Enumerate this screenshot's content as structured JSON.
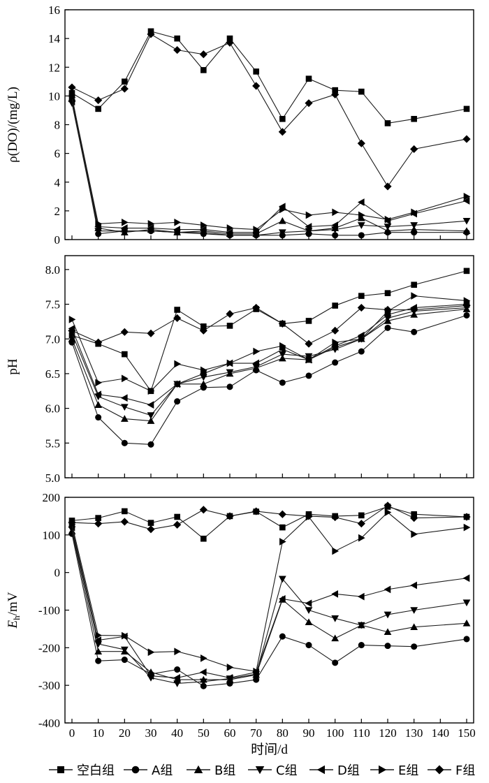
{
  "chart_data": [
    {
      "type": "line",
      "ylabel": "ρ(DO)/(mg/L)",
      "xlabel": "",
      "x": [
        0,
        10,
        20,
        30,
        40,
        50,
        60,
        70,
        80,
        90,
        100,
        110,
        120,
        130,
        150
      ],
      "xlim": [
        0,
        150
      ],
      "ylim": [
        0,
        16
      ],
      "yticks": [
        0,
        2,
        4,
        6,
        8,
        10,
        12,
        14,
        16
      ],
      "series": [
        {
          "name": "空白组",
          "marker": "square",
          "values": [
            10.2,
            9.1,
            11.0,
            14.5,
            14.0,
            11.8,
            14.0,
            11.7,
            8.4,
            11.2,
            10.4,
            10.3,
            8.1,
            8.4,
            9.1
          ]
        },
        {
          "name": "A组",
          "marker": "circle",
          "values": [
            10.0,
            0.4,
            0.6,
            0.6,
            0.5,
            0.4,
            0.3,
            0.3,
            0.3,
            0.4,
            0.3,
            0.3,
            0.5,
            0.5,
            0.5
          ]
        },
        {
          "name": "B组",
          "marker": "triangle-up",
          "values": [
            9.8,
            0.8,
            0.5,
            0.7,
            0.5,
            0.6,
            0.4,
            0.4,
            1.3,
            0.6,
            0.8,
            1.5,
            0.6,
            0.7,
            0.6
          ]
        },
        {
          "name": "C组",
          "marker": "triangle-down",
          "values": [
            9.5,
            0.6,
            0.6,
            0.6,
            0.5,
            0.5,
            0.3,
            0.3,
            0.5,
            0.6,
            0.7,
            1.0,
            0.9,
            1.0,
            1.3
          ]
        },
        {
          "name": "D组",
          "marker": "triangle-left",
          "values": [
            9.6,
            0.9,
            0.8,
            0.8,
            0.7,
            0.7,
            0.5,
            0.5,
            2.3,
            0.9,
            1.0,
            2.6,
            1.3,
            1.8,
            2.7
          ]
        },
        {
          "name": "E组",
          "marker": "triangle-right",
          "values": [
            9.9,
            1.1,
            1.2,
            1.1,
            1.2,
            1.0,
            0.8,
            0.7,
            2.1,
            1.7,
            1.9,
            1.7,
            1.4,
            1.9,
            3.0
          ]
        },
        {
          "name": "F组",
          "marker": "diamond",
          "values": [
            10.6,
            9.7,
            10.5,
            14.3,
            13.2,
            12.9,
            13.7,
            10.7,
            7.5,
            9.5,
            10.1,
            6.7,
            3.7,
            6.3,
            7.0
          ]
        }
      ]
    },
    {
      "type": "line",
      "ylabel": "pH",
      "xlabel": "",
      "x": [
        0,
        10,
        20,
        30,
        40,
        50,
        60,
        70,
        80,
        90,
        100,
        110,
        120,
        130,
        150
      ],
      "xlim": [
        0,
        150
      ],
      "ylim": [
        5.0,
        8.2
      ],
      "yticks": [
        5.0,
        5.5,
        6.0,
        6.5,
        7.0,
        7.5,
        8.0
      ],
      "series": [
        {
          "name": "空白组",
          "marker": "square",
          "values": [
            7.05,
            6.93,
            6.78,
            6.25,
            7.42,
            7.18,
            7.19,
            7.43,
            7.22,
            7.26,
            7.48,
            7.62,
            7.66,
            7.78,
            7.98
          ]
        },
        {
          "name": "A组",
          "marker": "circle",
          "values": [
            6.95,
            5.87,
            5.5,
            5.48,
            6.1,
            6.3,
            6.31,
            6.55,
            6.37,
            6.47,
            6.66,
            6.82,
            7.16,
            7.1,
            7.34
          ]
        },
        {
          "name": "B组",
          "marker": "triangle-up",
          "values": [
            7.0,
            6.05,
            5.85,
            5.82,
            6.35,
            6.35,
            6.5,
            6.58,
            6.72,
            6.7,
            6.88,
            7.0,
            7.26,
            7.35,
            7.43
          ]
        },
        {
          "name": "C组",
          "marker": "triangle-down",
          "values": [
            7.08,
            6.17,
            6.02,
            5.9,
            6.35,
            6.45,
            6.52,
            6.6,
            6.78,
            6.75,
            6.85,
            7.0,
            7.3,
            7.4,
            7.45
          ]
        },
        {
          "name": "D组",
          "marker": "triangle-left",
          "values": [
            7.15,
            6.2,
            6.15,
            6.05,
            6.35,
            6.5,
            6.65,
            6.65,
            6.85,
            6.7,
            6.9,
            7.05,
            7.35,
            7.45,
            7.5
          ]
        },
        {
          "name": "E组",
          "marker": "triangle-right",
          "values": [
            7.28,
            6.37,
            6.43,
            6.25,
            6.64,
            6.55,
            6.65,
            6.82,
            6.9,
            6.7,
            6.95,
            7.0,
            7.4,
            7.62,
            7.55
          ]
        },
        {
          "name": "F组",
          "marker": "diamond",
          "values": [
            7.12,
            6.95,
            7.1,
            7.08,
            7.3,
            7.12,
            7.36,
            7.45,
            7.22,
            6.93,
            7.12,
            7.45,
            7.42,
            7.42,
            7.48
          ]
        }
      ]
    },
    {
      "type": "line",
      "ylabel": "Eh/mV",
      "ylabel_main": "E",
      "ylabel_sub": "h",
      "ylabel_unit": "/mV",
      "xlabel": "时间/d",
      "x": [
        0,
        10,
        20,
        30,
        40,
        50,
        60,
        70,
        80,
        90,
        100,
        110,
        120,
        130,
        150
      ],
      "xlim": [
        0,
        150
      ],
      "xticks": [
        0,
        10,
        20,
        30,
        40,
        50,
        60,
        70,
        80,
        90,
        100,
        110,
        120,
        130,
        140,
        150
      ],
      "ylim": [
        -400,
        200
      ],
      "yticks": [
        -400,
        -300,
        -200,
        -100,
        0,
        100,
        200
      ],
      "series": [
        {
          "name": "空白组",
          "marker": "square",
          "values": [
            138,
            145,
            163,
            132,
            148,
            90,
            150,
            162,
            120,
            155,
            150,
            152,
            175,
            155,
            148
          ]
        },
        {
          "name": "A组",
          "marker": "circle",
          "values": [
            103,
            -235,
            -232,
            -270,
            -258,
            -302,
            -295,
            -285,
            -170,
            -193,
            -240,
            -193,
            -195,
            -197,
            -177
          ]
        },
        {
          "name": "B组",
          "marker": "triangle-up",
          "values": [
            110,
            -210,
            -210,
            -265,
            -285,
            -285,
            -285,
            -272,
            -72,
            -132,
            -175,
            -140,
            -158,
            -145,
            -135
          ]
        },
        {
          "name": "C组",
          "marker": "triangle-down",
          "values": [
            115,
            -190,
            -205,
            -280,
            -295,
            -290,
            -282,
            -270,
            -17,
            -100,
            -122,
            -140,
            -112,
            -100,
            -80
          ]
        },
        {
          "name": "D组",
          "marker": "triangle-left",
          "values": [
            120,
            -180,
            -170,
            -275,
            -280,
            -265,
            -280,
            -265,
            -70,
            -82,
            -57,
            -64,
            -45,
            -34,
            -15
          ]
        },
        {
          "name": "E组",
          "marker": "triangle-right",
          "values": [
            128,
            -167,
            -168,
            -212,
            -210,
            -228,
            -252,
            -263,
            82,
            148,
            57,
            92,
            160,
            102,
            120
          ]
        },
        {
          "name": "F组",
          "marker": "diamond",
          "values": [
            133,
            130,
            135,
            115,
            127,
            167,
            150,
            163,
            155,
            150,
            147,
            130,
            178,
            145,
            148
          ]
        }
      ]
    }
  ],
  "legend": {
    "placement": "bottom",
    "items": [
      {
        "label": "空白组",
        "marker": "square"
      },
      {
        "label": "A组",
        "marker": "circle"
      },
      {
        "label": "B组",
        "marker": "triangle-up"
      },
      {
        "label": "C组",
        "marker": "triangle-down"
      },
      {
        "label": "D组",
        "marker": "triangle-left"
      },
      {
        "label": "E组",
        "marker": "triangle-right"
      },
      {
        "label": "F组",
        "marker": "diamond"
      }
    ]
  },
  "colors": {
    "line": "#1a1a1a",
    "marker": "#000000",
    "background": "#ffffff"
  }
}
